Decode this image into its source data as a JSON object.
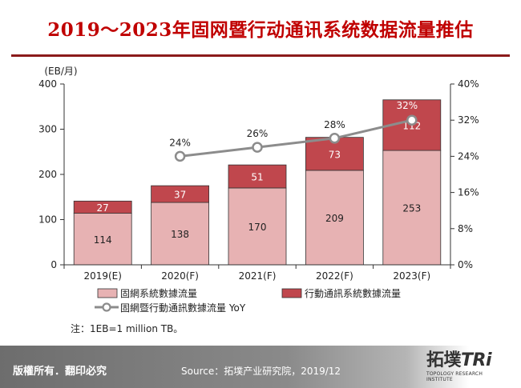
{
  "header": {
    "title": "2019～2023年固网暨行动通讯系统数据流量推估"
  },
  "chart_data": {
    "type": "bar",
    "stacked": true,
    "categories": [
      "2019(E)",
      "2020(F)",
      "2021(F)",
      "2022(F)",
      "2023(F)"
    ],
    "series": [
      {
        "name": "固網系統數據流量",
        "kind": "bar",
        "axis": "left",
        "color": "#e7b2b3",
        "values": [
          114,
          138,
          170,
          209,
          253
        ]
      },
      {
        "name": "行動通訊系統數據流量",
        "kind": "bar",
        "axis": "left",
        "color": "#c0474d",
        "values": [
          27,
          37,
          51,
          73,
          112
        ]
      },
      {
        "name": "固網暨行動通訊數據流量 YoY",
        "kind": "line",
        "axis": "right",
        "color": "#8c8c8c",
        "values": [
          null,
          24,
          26,
          28,
          32
        ],
        "labels": [
          "",
          "24%",
          "26%",
          "28%",
          "32%"
        ]
      }
    ],
    "ylabel": "(EB/月)",
    "ylim": [
      0,
      400
    ],
    "yticks": [
      "0",
      "100",
      "200",
      "300",
      "400"
    ],
    "y2lim": [
      0,
      40
    ],
    "y2ticks": [
      "0%",
      "8%",
      "16%",
      "24%",
      "32%",
      "40%"
    ],
    "grid": false,
    "legend": "bottom"
  },
  "note": "注：1EB=1 million TB。",
  "footer": {
    "copyright": "版權所有．翻印必究",
    "source": "Source：拓墣产业研究院，2019/12",
    "brand": "拓墣TRi",
    "brand_cn": "拓墣",
    "brand_en": "TRi",
    "brand_sub": "TOPOLOGY RESEARCH INSTITUTE"
  }
}
